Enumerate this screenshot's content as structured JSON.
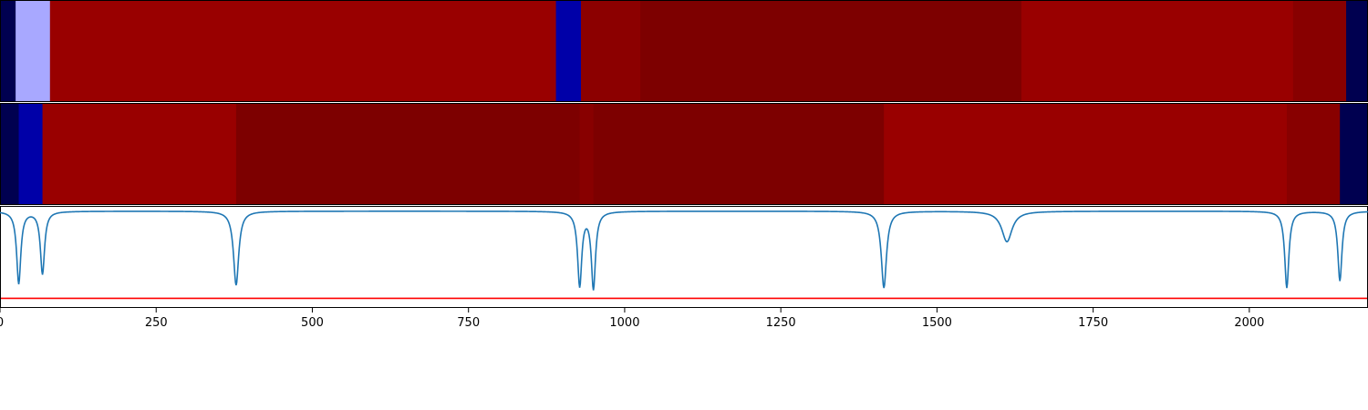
{
  "chart_data": {
    "type": "heatmap",
    "x_range": [
      0,
      2190
    ],
    "x_ticks": [
      0,
      250,
      500,
      750,
      1000,
      1250,
      1500,
      1750,
      2000
    ],
    "tracks": [
      {
        "name": "segment-track-1",
        "segments": [
          {
            "start": 0,
            "end": 25,
            "color": "#000050"
          },
          {
            "start": 25,
            "end": 80,
            "color": "#a8a8ff"
          },
          {
            "start": 80,
            "end": 890,
            "color": "#990000"
          },
          {
            "start": 890,
            "end": 930,
            "color": "#0000a8"
          },
          {
            "start": 930,
            "end": 1025,
            "color": "#8c0000"
          },
          {
            "start": 1025,
            "end": 1635,
            "color": "#7d0000"
          },
          {
            "start": 1635,
            "end": 2070,
            "color": "#990000"
          },
          {
            "start": 2070,
            "end": 2155,
            "color": "#880000"
          },
          {
            "start": 2155,
            "end": 2190,
            "color": "#000050"
          }
        ]
      },
      {
        "name": "segment-track-2",
        "segments": [
          {
            "start": 0,
            "end": 30,
            "color": "#000050"
          },
          {
            "start": 30,
            "end": 68,
            "color": "#0000a8"
          },
          {
            "start": 68,
            "end": 378,
            "color": "#990000"
          },
          {
            "start": 378,
            "end": 928,
            "color": "#7d0000"
          },
          {
            "start": 928,
            "end": 950,
            "color": "#880000"
          },
          {
            "start": 950,
            "end": 1415,
            "color": "#7d0000"
          },
          {
            "start": 1415,
            "end": 2060,
            "color": "#990000"
          },
          {
            "start": 2060,
            "end": 2145,
            "color": "#880000"
          },
          {
            "start": 2145,
            "end": 2190,
            "color": "#000050"
          }
        ]
      }
    ],
    "signal": {
      "color": "#1f77b4",
      "baseline": 0,
      "y_range": [
        -1.1,
        0.05
      ],
      "dips": [
        {
          "center": 30,
          "width": 4,
          "depth": 0.83
        },
        {
          "center": 68,
          "width": 4,
          "depth": 0.72
        },
        {
          "center": 378,
          "width": 5,
          "depth": 0.85
        },
        {
          "center": 928,
          "width": 4,
          "depth": 0.85
        },
        {
          "center": 950,
          "width": 4,
          "depth": 0.88
        },
        {
          "center": 1415,
          "width": 5,
          "depth": 0.88
        },
        {
          "center": 1612,
          "width": 10,
          "depth": 0.35
        },
        {
          "center": 2060,
          "width": 4,
          "depth": 0.88
        },
        {
          "center": 2145,
          "width": 4,
          "depth": 0.8
        }
      ]
    },
    "threshold": {
      "value": -1.0,
      "color": "#ff0000"
    }
  }
}
